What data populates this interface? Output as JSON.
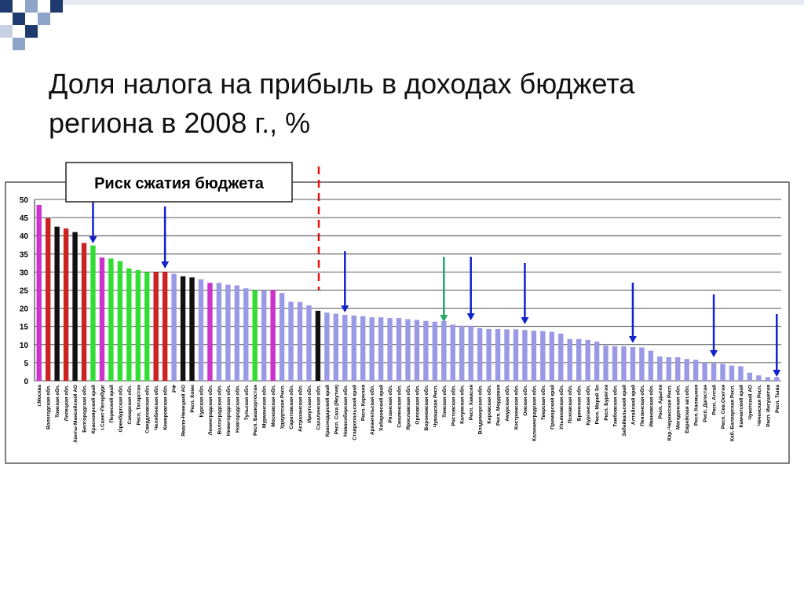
{
  "chart_data": {
    "type": "bar",
    "title": "Доля налога на прибыль в доходах бюджета региона в 2008 г., %",
    "annotation": "Риск сжатия бюджета",
    "categories": [
      "г.Москва",
      "Вологодская обл.",
      "Томская обл.",
      "Липецкая обл.",
      "Ханты-Мансийский АО",
      "Белгородская обл.",
      "Красноярский край",
      "г.Санкт-Петербург",
      "Пермский край",
      "Оренбургская обл.",
      "Самарская обл.",
      "Респ. Татарстан",
      "Свердловская обл.",
      "Челябинская обл.",
      "Кемеровская обл.",
      "РФ",
      "Ямало-Ненецкий АО",
      "Респ. Коми",
      "Курская обл.",
      "Ленинградская обл.",
      "Волгоградская обл.",
      "Нижегородская обл.",
      "Новгородская обл.",
      "Тульская обл.",
      "Респ. Башкортостан",
      "Мурманская обл.",
      "Московская обл.",
      "Удмуртская Респ.",
      "Саратовская обл.",
      "Астраханская обл.",
      "Иркутская обл.",
      "Сахалинская обл.",
      "Краснодарский край",
      "Респ. Саха (Якутия)",
      "Новосибирская обл.",
      "Ставропольский край",
      "Респ. Карелия",
      "Архангельская обл.",
      "Хабаровский край",
      "Рязанская обл.",
      "Смоленская обл.",
      "Ярославская обл.",
      "Орловская обл.",
      "Воронежская обл.",
      "Чувашская Респ.",
      "Томская обл.",
      "Ростовская обл.",
      "Калужская обл.",
      "Респ. Хакасия",
      "Владимирская обл.",
      "Кировская обл.",
      "Респ. Мордовия",
      "Амурская обл.",
      "Костромская обл.",
      "Омская обл.",
      "Калининградская обл.",
      "Тверская обл.",
      "Приморский край",
      "Ульяновская обл.",
      "Псковская обл.",
      "Брянская обл.",
      "Курганская обл.",
      "Респ. Марий Эл",
      "Респ. Бурятия",
      "Тамбовская обл.",
      "Забайкальский край",
      "Алтайский край",
      "Пензенская обл.",
      "Ивановская обл.",
      "Респ. Адыгея",
      "Кар.-Черкесская Респ.",
      "Магаданская обл.",
      "Еврейская авт.обл.",
      "Респ. Калмыкия",
      "Респ. Дагестан",
      "Респ. Алтай",
      "Респ. Сев.Осетия",
      "Каб.-Балкарская Респ.",
      "Камчатский край",
      "Чукотский АО",
      "Чеченская Респ.",
      "Респ. Ингушетия",
      "Респ. Тыва"
    ],
    "values": [
      48.5,
      44.8,
      42.5,
      42,
      41,
      38,
      37.3,
      34,
      33.7,
      33,
      31,
      30.5,
      30,
      30,
      30,
      29.5,
      28.8,
      28.5,
      28,
      27,
      27,
      26.5,
      26.3,
      25.5,
      25,
      25,
      25,
      24.2,
      21.8,
      21.7,
      20.8,
      19.3,
      18.8,
      18.5,
      18.2,
      18,
      17.8,
      17.5,
      17.5,
      17.3,
      17.3,
      17,
      16.8,
      16.5,
      16.3,
      16.5,
      15.5,
      15.2,
      15.2,
      14.5,
      14.3,
      14.3,
      14.2,
      14.2,
      14,
      13.8,
      13.7,
      13.5,
      13,
      11.5,
      11.5,
      11.3,
      10.8,
      9.7,
      9.5,
      9.5,
      9.3,
      9.2,
      8.3,
      6.7,
      6.5,
      6.5,
      6,
      5.8,
      5,
      5,
      4.7,
      4.2,
      4,
      2.2,
      1.5,
      1,
      1
    ],
    "colors": [
      "#cc33cc",
      "#cc2222",
      "#111111",
      "#cc2222",
      "#111111",
      "#cc2222",
      "#33dd33",
      "#cc33cc",
      "#33dd33",
      "#33dd33",
      "#33dd33",
      "#33dd33",
      "#33dd33",
      "#cc2222",
      "#cc2222",
      "#9999e6",
      "#111111",
      "#111111",
      "#9999e6",
      "#cc33cc",
      "#9999e6",
      "#9999e6",
      "#9999e6",
      "#9999e6",
      "#33dd33",
      "#9999e6",
      "#cc33cc",
      "#9999e6",
      "#9999e6",
      "#9999e6",
      "#9999e6",
      "#111111",
      "#9999e6",
      "#9999e6",
      "#9999e6",
      "#9999e6",
      "#9999e6",
      "#9999e6",
      "#9999e6",
      "#9999e6",
      "#9999e6",
      "#9999e6",
      "#9999e6",
      "#9999e6",
      "#9999e6",
      "#9999e6",
      "#9999e6",
      "#9999e6",
      "#9999e6",
      "#9999e6",
      "#9999e6",
      "#9999e6",
      "#9999e6",
      "#9999e6",
      "#9999e6",
      "#9999e6",
      "#9999e6",
      "#9999e6",
      "#9999e6",
      "#9999e6",
      "#9999e6",
      "#9999e6",
      "#9999e6",
      "#9999e6",
      "#9999e6",
      "#9999e6",
      "#9999e6",
      "#9999e6",
      "#9999e6",
      "#9999e6",
      "#9999e6",
      "#9999e6",
      "#9999e6",
      "#9999e6",
      "#9999e6",
      "#9999e6",
      "#9999e6",
      "#9999e6",
      "#9999e6",
      "#9999e6",
      "#9999e6",
      "#9999e6",
      "#9999e6"
    ],
    "ylim": [
      0,
      50
    ],
    "yticks": [
      0,
      5,
      10,
      15,
      20,
      25,
      30,
      35,
      40,
      45,
      50
    ],
    "grid": true
  }
}
